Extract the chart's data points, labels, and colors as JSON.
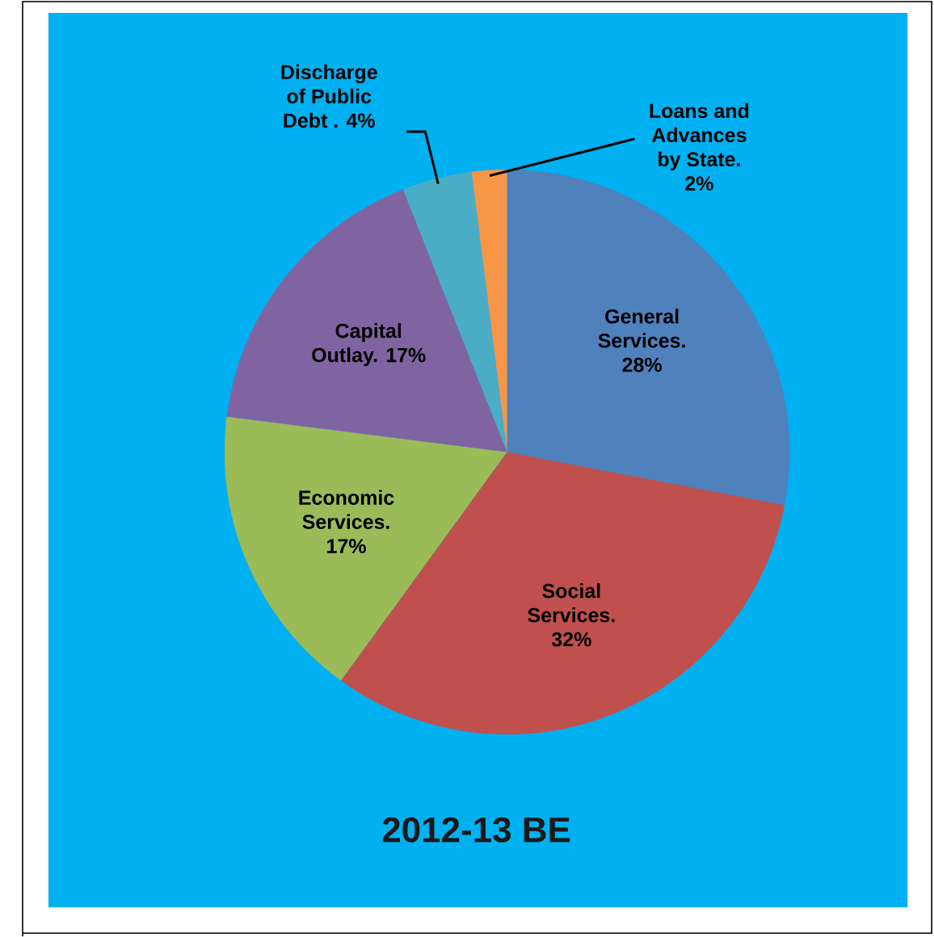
{
  "chart_data": {
    "type": "pie",
    "title": "2012-13 BE",
    "categories": [
      "General Services.",
      "Social Services.",
      "Economic Services.",
      "Capital Outlay.",
      "Discharge of Public Debt .",
      "Loans and Advances by State."
    ],
    "values": [
      28,
      32,
      17,
      17,
      4,
      2
    ],
    "value_labels": [
      "28%",
      "32%",
      "17%",
      "17%",
      "4%",
      "2%"
    ],
    "colors": [
      "#4f81bd",
      "#c0504d",
      "#9bbb59",
      "#8064a2",
      "#4bacc6",
      "#f79646"
    ]
  }
}
